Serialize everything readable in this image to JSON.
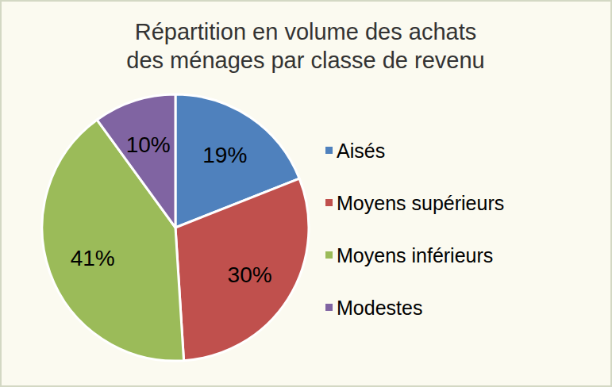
{
  "chart_data": {
    "type": "pie",
    "title": [
      "Répartition en volume des achats",
      "des ménages par classe de revenu"
    ],
    "categories": [
      "Aisés",
      "Moyens supérieurs",
      "Moyens inférieurs",
      "Modestes"
    ],
    "values": [
      19,
      30,
      41,
      10
    ],
    "value_labels": [
      "19%",
      "30%",
      "41%",
      "10%"
    ],
    "colors": [
      "#4f81bd",
      "#c0504d",
      "#9bbb59",
      "#8064a2"
    ],
    "data_labels": true,
    "legend": "right"
  }
}
